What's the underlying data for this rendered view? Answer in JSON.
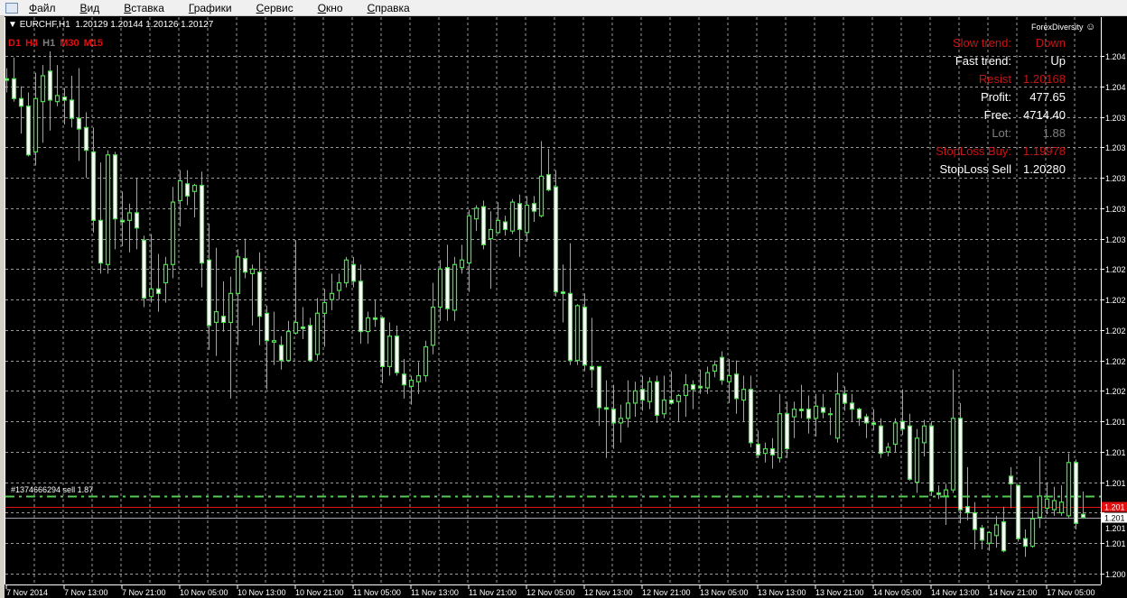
{
  "menu": {
    "items": [
      "Файл",
      "Вид",
      "Вставка",
      "Графики",
      "Сервис",
      "Окно",
      "Справка"
    ]
  },
  "chart_header": {
    "symbol": "EURCHF,H1",
    "ohlc": "1.20129 1.20144 1.20126 1.20127"
  },
  "timeframes": [
    {
      "label": "D1",
      "color": "#e01010"
    },
    {
      "label": "H4",
      "color": "#e01010"
    },
    {
      "label": "H1",
      "color": "#808080"
    },
    {
      "label": "M30",
      "color": "#e01010"
    },
    {
      "label": "M15",
      "color": "#e01010"
    }
  ],
  "brand": {
    "text": "ForexDiversity",
    "icon": "smiley-icon"
  },
  "info_panel": [
    {
      "label": "Slow trend:",
      "value": "Down",
      "color": "#c81414"
    },
    {
      "label": "Fast trend:",
      "value": "Up",
      "color": "#ffffff"
    },
    {
      "label": "Resist",
      "value": "1.20168",
      "color": "#c81414"
    },
    {
      "label": "Profit:",
      "value": "477.65",
      "color": "#ffffff"
    },
    {
      "label": "Free:",
      "value": "4714.40",
      "color": "#ffffff"
    },
    {
      "label": "Lot:",
      "value": "1.88",
      "color": "#808080"
    },
    {
      "label": "StopLoss Buy:",
      "value": "1.19978",
      "color": "#c81414"
    },
    {
      "label": "StopLoss Sell",
      "value": "1.20280",
      "color": "#ffffff"
    }
  ],
  "order": {
    "label": "#1374666294 sell 1.87",
    "price": 1.20141,
    "color": "#55c855"
  },
  "colors": {
    "background": "#000000",
    "grid": "#9a9a9a",
    "candle": "#3ce83c",
    "bear_fill": "#ffffff",
    "bull_fill": "#000000",
    "red_line": "#e01010",
    "bid_line": "#a0a0b0"
  },
  "chart_data": {
    "type": "candlestick",
    "symbol": "EURCHF",
    "timeframe": "H1",
    "grid": true,
    "price_axis": {
      "grid_prices": [
        1.2043,
        1.2041,
        1.2039,
        1.2037,
        1.2035,
        1.2033,
        1.2031,
        1.2029,
        1.2027,
        1.2025,
        1.2023,
        1.2021,
        1.2019,
        1.2017,
        1.2015,
        1.2013,
        1.2011,
        1.2009
      ],
      "labels": [
        "1.204",
        "1.204",
        "1.203",
        "1.203",
        "1.203",
        "1.203",
        "1.203",
        "1.202",
        "1.202",
        "1.202",
        "1.202",
        "1.202",
        "1.201",
        "1.201",
        "1.201",
        "1.201",
        "1.201",
        "1.200"
      ]
    },
    "time_axis": {
      "labels": [
        "7 Nov 2014",
        "7 Nov 13:00",
        "7 Nov 21:00",
        "10 Nov 05:00",
        "10 Nov 13:00",
        "10 Nov 21:00",
        "11 Nov 05:00",
        "11 Nov 13:00",
        "11 Nov 21:00",
        "12 Nov 05:00",
        "12 Nov 13:00",
        "12 Nov 21:00",
        "13 Nov 05:00",
        "13 Nov 13:00",
        "13 Nov 21:00",
        "14 Nov 05:00",
        "14 Nov 13:00",
        "14 Nov 21:00",
        "17 Nov 05:00"
      ],
      "bars_per_label": 8
    },
    "price_lines": [
      {
        "price": 1.20134,
        "tag": "1.201",
        "color": "#e01010"
      },
      {
        "price": 1.20127,
        "tag": "1.201",
        "color": "#ffffff"
      }
    ],
    "ohlc": [
      [
        1.20415,
        1.20422,
        1.20406,
        1.20414
      ],
      [
        1.20415,
        1.20429,
        1.204,
        1.20402
      ],
      [
        1.20402,
        1.2041,
        1.20379,
        1.20397
      ],
      [
        1.20397,
        1.20406,
        1.20364,
        1.20365
      ],
      [
        1.20367,
        1.20419,
        1.20358,
        1.20402
      ],
      [
        1.204,
        1.20424,
        1.20373,
        1.20417
      ],
      [
        1.2042,
        1.20433,
        1.20381,
        1.20401
      ],
      [
        1.204,
        1.20424,
        1.20397,
        1.20404
      ],
      [
        1.20403,
        1.20409,
        1.20385,
        1.20401
      ],
      [
        1.20401,
        1.20417,
        1.20383,
        1.20389
      ],
      [
        1.20389,
        1.20422,
        1.20361,
        1.20382
      ],
      [
        1.20383,
        1.20393,
        1.2035,
        1.20368
      ],
      [
        1.20367,
        1.20383,
        1.20314,
        1.20322
      ],
      [
        1.20322,
        1.2036,
        1.20287,
        1.20294
      ],
      [
        1.20293,
        1.20368,
        1.20287,
        1.20365
      ],
      [
        1.20365,
        1.20367,
        1.20303,
        1.20323
      ],
      [
        1.20322,
        1.20341,
        1.20305,
        1.20321
      ],
      [
        1.20322,
        1.20333,
        1.20301,
        1.20327
      ],
      [
        1.20327,
        1.2035,
        1.20303,
        1.20317
      ],
      [
        1.20309,
        1.20312,
        1.20265,
        1.20271
      ],
      [
        1.20272,
        1.20313,
        1.20268,
        1.20277
      ],
      [
        1.20277,
        1.203,
        1.20262,
        1.20274
      ],
      [
        1.20281,
        1.20298,
        1.20268,
        1.20293
      ],
      [
        1.20293,
        1.20344,
        1.20284,
        1.20334
      ],
      [
        1.20335,
        1.20355,
        1.20318,
        1.20348
      ],
      [
        1.20346,
        1.20355,
        1.20332,
        1.20338
      ],
      [
        1.20341,
        1.20346,
        1.20324,
        1.20345
      ],
      [
        1.20345,
        1.20354,
        1.20278,
        1.20294
      ],
      [
        1.20296,
        1.2032,
        1.20237,
        1.20253
      ],
      [
        1.20255,
        1.20304,
        1.20233,
        1.20262
      ],
      [
        1.20259,
        1.20282,
        1.20249,
        1.20255
      ],
      [
        1.20255,
        1.20285,
        1.20205,
        1.20274
      ],
      [
        1.20274,
        1.20303,
        1.2024,
        1.20298
      ],
      [
        1.20297,
        1.2031,
        1.20284,
        1.20288
      ],
      [
        1.20287,
        1.20293,
        1.20253,
        1.2029
      ],
      [
        1.20288,
        1.20301,
        1.2024,
        1.20259
      ],
      [
        1.20261,
        1.20266,
        1.20211,
        1.20243
      ],
      [
        1.20242,
        1.20262,
        1.20227,
        1.20243
      ],
      [
        1.2024,
        1.20246,
        1.20224,
        1.2023
      ],
      [
        1.2023,
        1.20256,
        1.20229,
        1.20249
      ],
      [
        1.20248,
        1.20309,
        1.20247,
        1.20255
      ],
      [
        1.20252,
        1.20265,
        1.20244,
        1.20251
      ],
      [
        1.20253,
        1.20258,
        1.20229,
        1.2023
      ],
      [
        1.20234,
        1.20271,
        1.2023,
        1.20261
      ],
      [
        1.20261,
        1.20277,
        1.20239,
        1.20268
      ],
      [
        1.2027,
        1.20287,
        1.20263,
        1.20274
      ],
      [
        1.20276,
        1.20287,
        1.2027,
        1.20281
      ],
      [
        1.20281,
        1.20298,
        1.20278,
        1.20296
      ],
      [
        1.20293,
        1.20298,
        1.20278,
        1.20282
      ],
      [
        1.20282,
        1.20293,
        1.20241,
        1.20249
      ],
      [
        1.20249,
        1.20262,
        1.20241,
        1.20258
      ],
      [
        1.20258,
        1.2027,
        1.20252,
        1.20257
      ],
      [
        1.20258,
        1.20259,
        1.20215,
        1.20226
      ],
      [
        1.20226,
        1.20255,
        1.2022,
        1.20246
      ],
      [
        1.20246,
        1.20253,
        1.2022,
        1.20222
      ],
      [
        1.20221,
        1.20231,
        1.20205,
        1.20214
      ],
      [
        1.20213,
        1.2022,
        1.20201,
        1.20217
      ],
      [
        1.20216,
        1.20229,
        1.20208,
        1.2022
      ],
      [
        1.2022,
        1.20243,
        1.20216,
        1.20239
      ],
      [
        1.2024,
        1.20281,
        1.20234,
        1.20265
      ],
      [
        1.20265,
        1.20296,
        1.20256,
        1.2029
      ],
      [
        1.20291,
        1.20306,
        1.20256,
        1.20264
      ],
      [
        1.20263,
        1.20298,
        1.20256,
        1.20293
      ],
      [
        1.20291,
        1.20306,
        1.20287,
        1.20296
      ],
      [
        1.20294,
        1.20329,
        1.20275,
        1.20325
      ],
      [
        1.20323,
        1.20332,
        1.20315,
        1.2033
      ],
      [
        1.20331,
        1.20335,
        1.20303,
        1.20306
      ],
      [
        1.2031,
        1.20328,
        1.20277,
        1.20316
      ],
      [
        1.20314,
        1.20334,
        1.20313,
        1.20322
      ],
      [
        1.20321,
        1.20325,
        1.20312,
        1.20316
      ],
      [
        1.20315,
        1.20336,
        1.20313,
        1.20334
      ],
      [
        1.20333,
        1.20339,
        1.20298,
        1.20316
      ],
      [
        1.20314,
        1.20338,
        1.20308,
        1.20332
      ],
      [
        1.20333,
        1.20338,
        1.20321,
        1.20328
      ],
      [
        1.20325,
        1.20374,
        1.20324,
        1.20351
      ],
      [
        1.20352,
        1.20369,
        1.20341,
        1.20342
      ],
      [
        1.20344,
        1.20355,
        1.20272,
        1.20275
      ],
      [
        1.20275,
        1.20293,
        1.20255,
        1.20274
      ],
      [
        1.20274,
        1.20307,
        1.20227,
        1.2023
      ],
      [
        1.2023,
        1.20267,
        1.20227,
        1.20266
      ],
      [
        1.20265,
        1.20274,
        1.20223,
        1.20227
      ],
      [
        1.20226,
        1.20258,
        1.20212,
        1.20224
      ],
      [
        1.20226,
        1.20226,
        1.20187,
        1.20199
      ],
      [
        1.20199,
        1.20217,
        1.20166,
        1.20198
      ],
      [
        1.20198,
        1.20214,
        1.20172,
        1.20189
      ],
      [
        1.20189,
        1.20201,
        1.20176,
        1.20192
      ],
      [
        1.20192,
        1.20217,
        1.20186,
        1.20202
      ],
      [
        1.20202,
        1.20216,
        1.20193,
        1.2021
      ],
      [
        1.20211,
        1.2022,
        1.20197,
        1.20204
      ],
      [
        1.20203,
        1.20219,
        1.20198,
        1.20216
      ],
      [
        1.20216,
        1.2022,
        1.20189,
        1.20194
      ],
      [
        1.20195,
        1.2022,
        1.20192,
        1.20204
      ],
      [
        1.20204,
        1.20223,
        1.20201,
        1.20202
      ],
      [
        1.20203,
        1.20208,
        1.2019,
        1.20207
      ],
      [
        1.20207,
        1.20221,
        1.20193,
        1.20214
      ],
      [
        1.20214,
        1.20217,
        1.20198,
        1.20211
      ],
      [
        1.20213,
        1.20224,
        1.20208,
        1.20212
      ],
      [
        1.20212,
        1.20226,
        1.20208,
        1.20222
      ],
      [
        1.20223,
        1.2023,
        1.20219,
        1.20227
      ],
      [
        1.20232,
        1.20236,
        1.20214,
        1.20217
      ],
      [
        1.20216,
        1.20231,
        1.20202,
        1.2022
      ],
      [
        1.20221,
        1.2023,
        1.20195,
        1.20205
      ],
      [
        1.20204,
        1.2022,
        1.2019,
        1.20211
      ],
      [
        1.20211,
        1.2022,
        1.20173,
        1.20176
      ],
      [
        1.20175,
        1.20184,
        1.20166,
        1.20168
      ],
      [
        1.20169,
        1.20176,
        1.20163,
        1.20172
      ],
      [
        1.20172,
        1.20179,
        1.20159,
        1.20168
      ],
      [
        1.20166,
        1.20208,
        1.20163,
        1.20195
      ],
      [
        1.20195,
        1.20203,
        1.20166,
        1.20172
      ],
      [
        1.20193,
        1.20203,
        1.20179,
        1.20198
      ],
      [
        1.20198,
        1.20214,
        1.20192,
        1.20197
      ],
      [
        1.20198,
        1.20207,
        1.20182,
        1.20192
      ],
      [
        1.20192,
        1.20208,
        1.2018,
        1.202
      ],
      [
        1.20199,
        1.20208,
        1.20192,
        1.20196
      ],
      [
        1.20195,
        1.20199,
        1.20181,
        1.20195
      ],
      [
        1.20179,
        1.20222,
        1.20176,
        1.20208
      ],
      [
        1.20208,
        1.20213,
        1.20197,
        1.20202
      ],
      [
        1.20202,
        1.20208,
        1.2019,
        1.20198
      ],
      [
        1.20198,
        1.20199,
        1.20187,
        1.20192
      ],
      [
        1.20193,
        1.20195,
        1.20179,
        1.20189
      ],
      [
        1.20189,
        1.20198,
        1.20184,
        1.20188
      ],
      [
        1.20187,
        1.20192,
        1.20166,
        1.20169
      ],
      [
        1.2017,
        1.20176,
        1.20167,
        1.20173
      ],
      [
        1.20175,
        1.20192,
        1.2017,
        1.20189
      ],
      [
        1.2019,
        1.20211,
        1.20181,
        1.20185
      ],
      [
        1.20187,
        1.20195,
        1.20151,
        1.20152
      ],
      [
        1.2015,
        1.20185,
        1.20143,
        1.20179
      ],
      [
        1.20176,
        1.20191,
        1.20167,
        1.20187
      ],
      [
        1.20187,
        1.2019,
        1.20141,
        1.20144
      ],
      [
        1.20143,
        1.20148,
        1.20139,
        1.20142
      ],
      [
        1.20141,
        1.20149,
        1.20122,
        1.20145
      ],
      [
        1.20145,
        1.20224,
        1.20143,
        1.20192
      ],
      [
        1.20192,
        1.20202,
        1.20123,
        1.20132
      ],
      [
        1.20134,
        1.2016,
        1.20125,
        1.2013
      ],
      [
        1.2013,
        1.20137,
        1.20106,
        1.20119
      ],
      [
        1.2012,
        1.20122,
        1.20106,
        1.20112
      ],
      [
        1.2011,
        1.20118,
        1.20105,
        1.20117
      ],
      [
        1.20115,
        1.20128,
        1.20107,
        1.20122
      ],
      [
        1.20124,
        1.20134,
        1.20104,
        1.20105
      ],
      [
        1.20154,
        1.2016,
        1.20133,
        1.20149
      ],
      [
        1.20148,
        1.20148,
        1.20111,
        1.20113
      ],
      [
        1.20113,
        1.20119,
        1.20101,
        1.20108
      ],
      [
        1.20108,
        1.20132,
        1.20107,
        1.20126
      ],
      [
        1.20127,
        1.20167,
        1.2012,
        1.20141
      ],
      [
        1.20133,
        1.2015,
        1.20129,
        1.20139
      ],
      [
        1.20132,
        1.20147,
        1.20128,
        1.20138
      ],
      [
        1.2013,
        1.20148,
        1.20128,
        1.20137
      ],
      [
        1.20128,
        1.20169,
        1.20126,
        1.20163
      ],
      [
        1.20163,
        1.20165,
        1.20119,
        1.20123
      ],
      [
        1.20129,
        1.20144,
        1.20126,
        1.20127
      ]
    ]
  }
}
